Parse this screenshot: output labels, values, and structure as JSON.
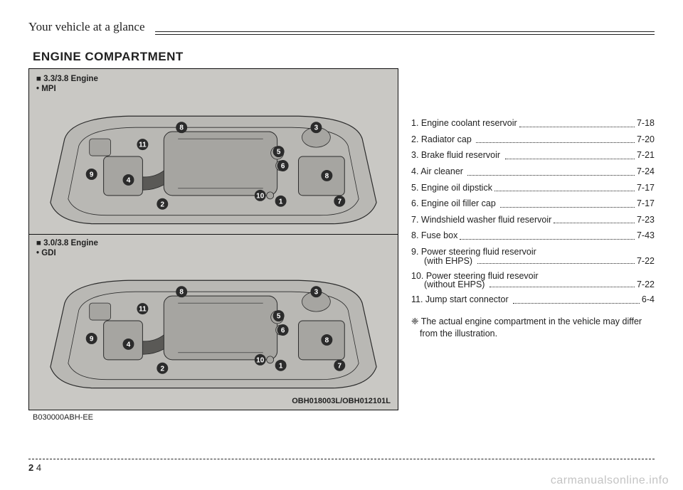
{
  "header": {
    "chapter": "Your vehicle at a glance"
  },
  "section_title": "ENGINE COMPARTMENT",
  "figures": {
    "top": {
      "engine_label": "■ 3.3/3.8 Engine",
      "engine_sublabel": "• MPI",
      "callouts": [
        1,
        2,
        3,
        4,
        5,
        6,
        7,
        8,
        8,
        9,
        10,
        11
      ],
      "body_fill": "#b9b8b4",
      "cover_fill": "#a6a5a1",
      "hose_fill": "#5a5956",
      "stroke": "#2b2b2b",
      "callout_fill": "#2b2b2b",
      "callout_text": "#ffffff"
    },
    "bottom": {
      "engine_label": "■ 3.0/3.8 Engine",
      "engine_sublabel": "• GDI",
      "callouts": [
        1,
        2,
        3,
        4,
        5,
        6,
        7,
        8,
        8,
        9,
        10,
        11
      ],
      "body_fill": "#b9b8b4",
      "cover_fill": "#a6a5a1",
      "hose_fill": "#5a5956",
      "stroke": "#2b2b2b",
      "callout_fill": "#2b2b2b",
      "callout_text": "#ffffff"
    },
    "figno_right": "OBH018003L/OBH012101L",
    "figno_left": "B030000ABH-EE"
  },
  "legend": [
    {
      "label": "1. Engine coolant reservoir",
      "page": "7-18"
    },
    {
      "label": "2. Radiator cap ",
      "page": "7-20"
    },
    {
      "label": "3. Brake fluid reservoir ",
      "page": "7-21"
    },
    {
      "label": "4. Air cleaner ",
      "page": "7-24"
    },
    {
      "label": "5. Engine oil dipstick",
      "page": "7-17"
    },
    {
      "label": "6. Engine oil filler cap ",
      "page": "7-17"
    },
    {
      "label": "7. Windshield washer fluid reservoir",
      "page": "7-23"
    },
    {
      "label": "8. Fuse box",
      "page": "7-43"
    },
    {
      "label": "9. Power steering fluid reservoir",
      "sub": "(with EHPS) ",
      "page": "7-22"
    },
    {
      "label": "10. Power steering fluid resevoir",
      "sub": "(without EHPS) ",
      "page": "7-22"
    },
    {
      "label": "11. Jump start connector ",
      "page": "6-4"
    }
  ],
  "note": "❈ The actual engine compartment in the vehicle may differ from the illustration.",
  "footer": {
    "section": "2",
    "page": "4"
  },
  "watermark": "carmanualsonline.info"
}
